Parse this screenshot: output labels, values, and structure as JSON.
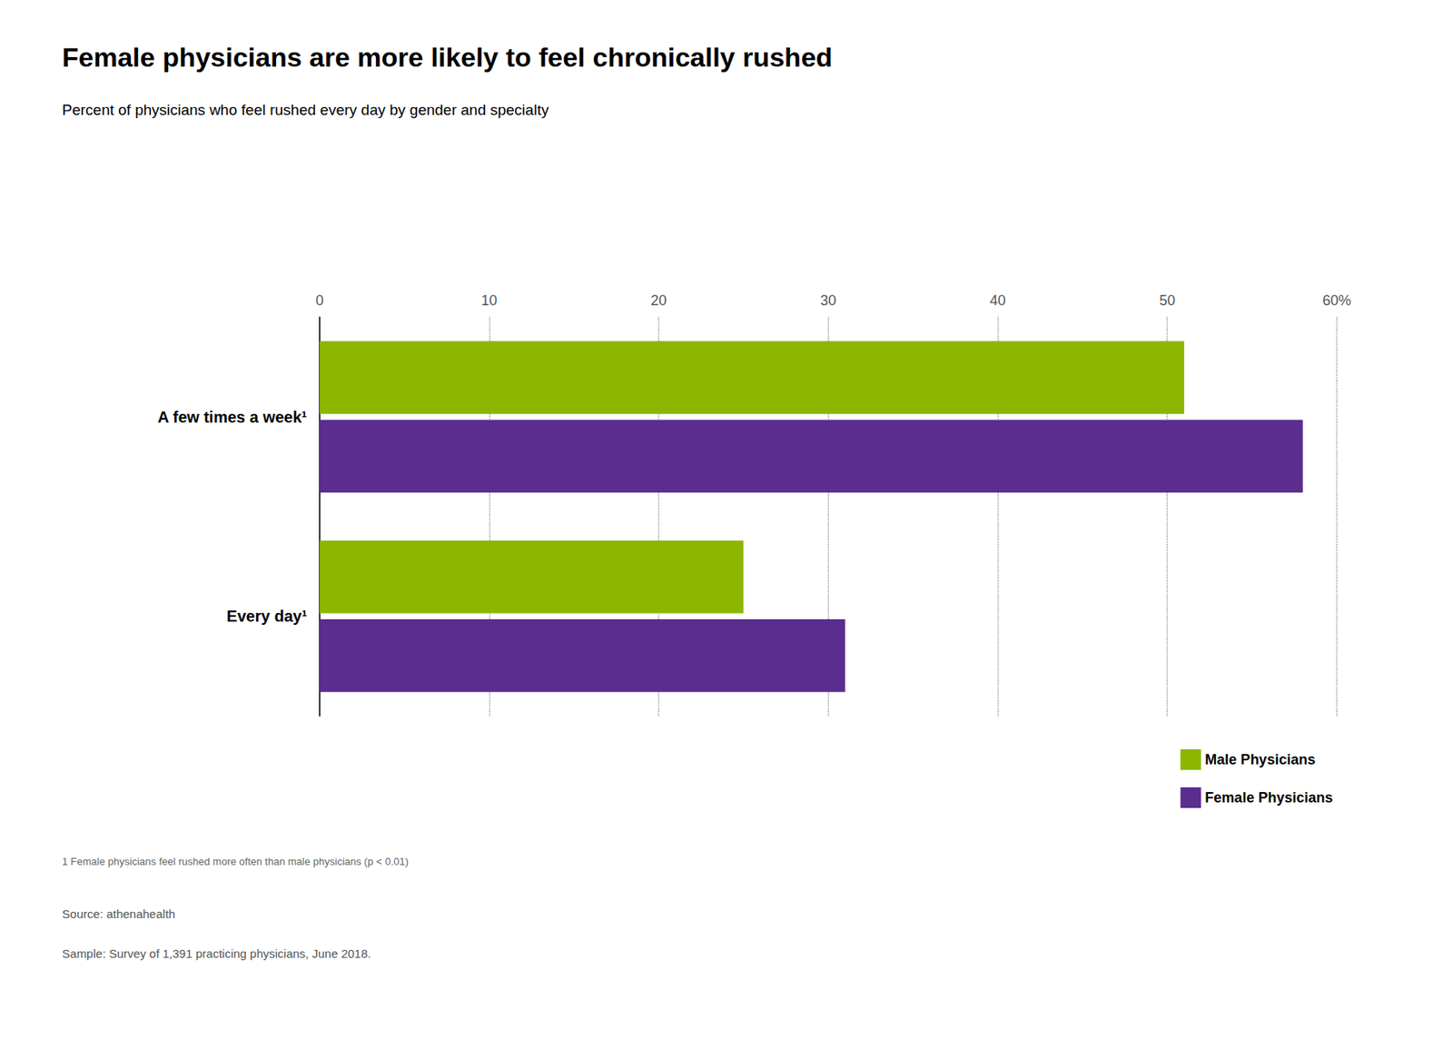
{
  "chart_data": {
    "type": "bar",
    "orientation": "horizontal",
    "title": "Female physicians are more likely to feel chronically rushed",
    "subtitle": "Percent of physicians who feel rushed every day by gender and specialty",
    "categories": [
      "A few times a week¹",
      "Every day¹"
    ],
    "series": [
      {
        "name": "Male Physicians",
        "color": "#8db600",
        "values": [
          51,
          25
        ]
      },
      {
        "name": "Female Physicians",
        "color": "#5b2d8e",
        "values": [
          58,
          31
        ]
      }
    ],
    "xlim": [
      0,
      60
    ],
    "xticks": [
      0,
      10,
      20,
      30,
      40,
      50,
      {
        "value": 60,
        "label": "60%"
      }
    ],
    "grid": true,
    "legend": "lower right",
    "annotations": [
      "1 Female physicians feel rushed more often than male physicians (p < 0.01)",
      "Source: athenahealth",
      "Sample: Survey of 1,391 practicing physicians, June 2018."
    ]
  }
}
